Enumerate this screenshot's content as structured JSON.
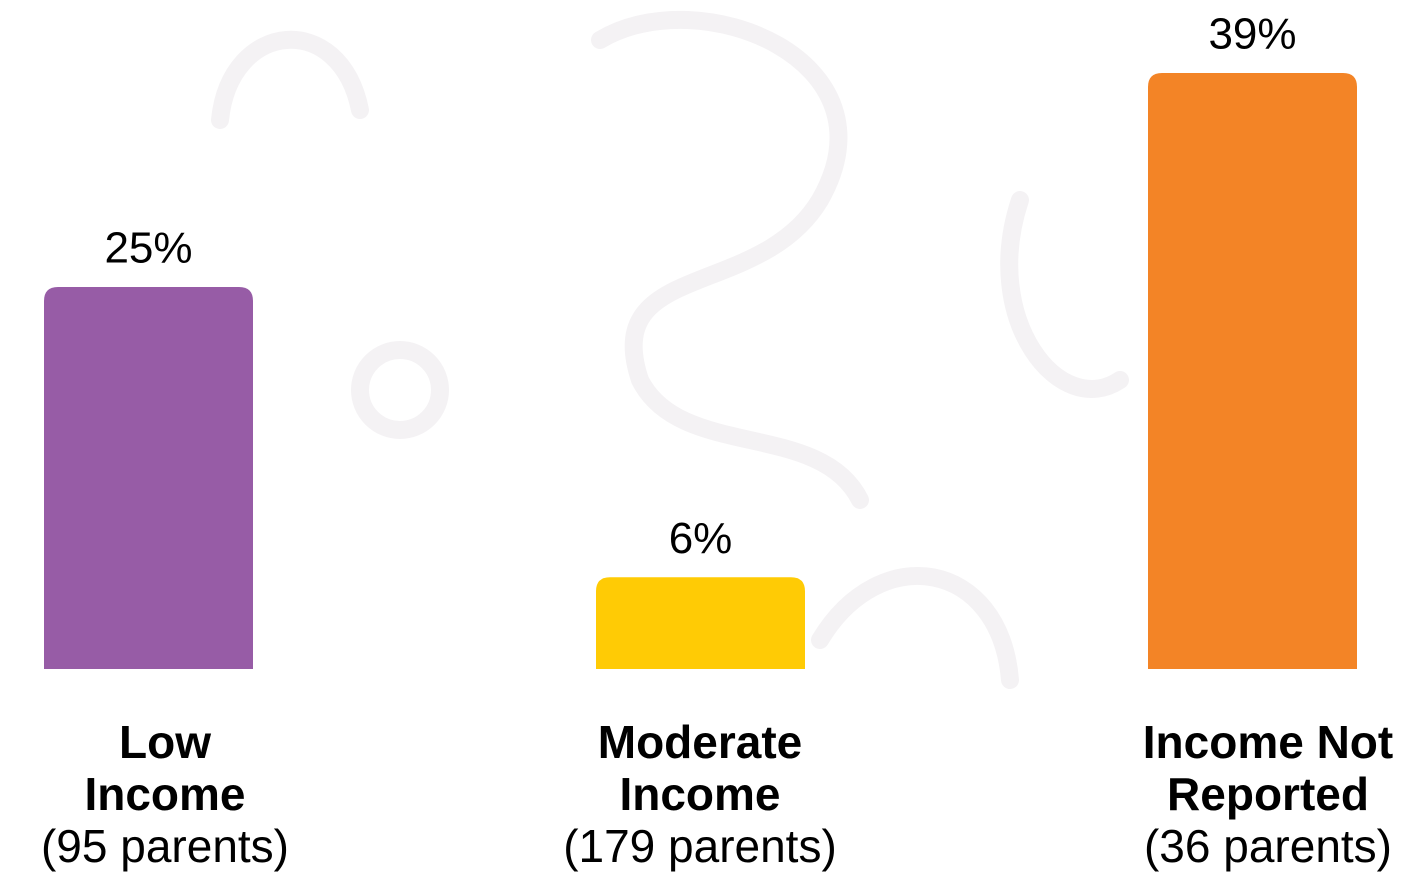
{
  "chart_data": {
    "type": "bar",
    "categories": [
      [
        "Low",
        "Income"
      ],
      [
        "Moderate",
        "Income"
      ],
      [
        "Income Not",
        "Reported"
      ]
    ],
    "category_sublabels": [
      "(95 parents)",
      "(179 parents)",
      "(36 parents)"
    ],
    "values": [
      25,
      6,
      39
    ],
    "value_labels": [
      "25%",
      "6%",
      "39%"
    ],
    "colors": [
      "#975ca6",
      "#ffcb05",
      "#f38426"
    ]
  }
}
